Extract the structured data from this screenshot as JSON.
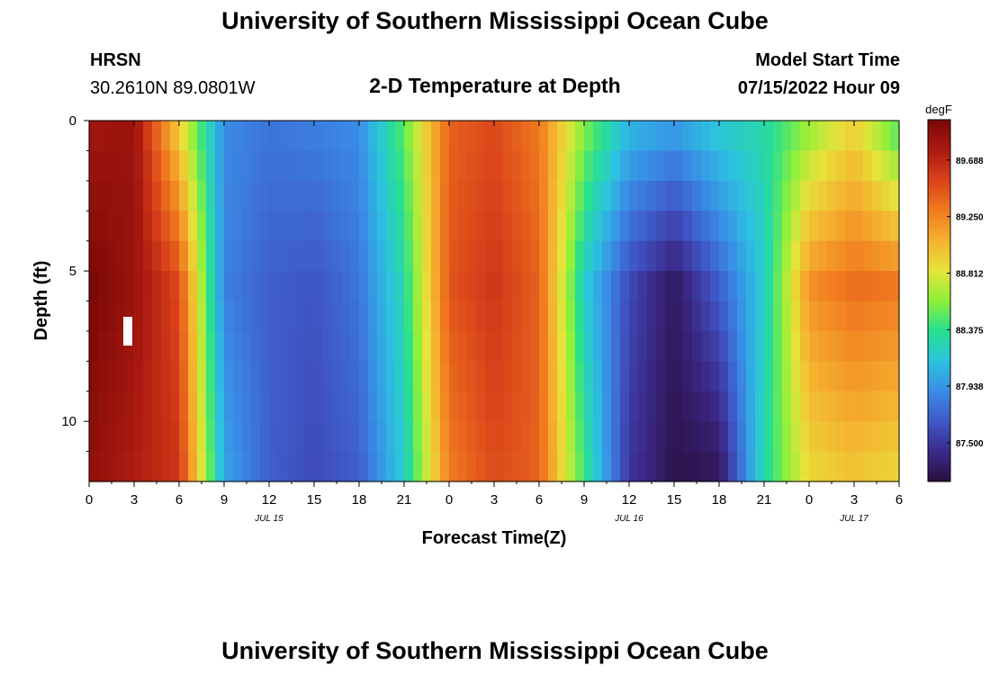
{
  "header": {
    "title": "University of Southern Mississippi Ocean Cube",
    "station": "HRSN",
    "coordinates": "30.2610N  89.0801W",
    "plot_title": "2-D Temperature at Depth",
    "model_start_label": "Model Start Time",
    "model_start_value": "07/15/2022 Hour 09"
  },
  "footer": {
    "title": "University of Southern Mississippi Ocean Cube"
  },
  "chart_data": {
    "type": "heatmap",
    "title": "2-D Temperature at Depth",
    "xlabel": "Forecast Time(Z)",
    "ylabel": "Depth (ft)",
    "x_tick_labels": [
      "0",
      "3",
      "6",
      "9",
      "12",
      "15",
      "18",
      "21",
      "0",
      "3",
      "6",
      "9",
      "12",
      "15",
      "18",
      "21",
      "0",
      "3",
      "6"
    ],
    "x_date_labels": [
      {
        "label": "JUL 15",
        "tick_index": 4
      },
      {
        "label": "JUL 16",
        "tick_index": 12
      },
      {
        "label": "JUL 17",
        "tick_index": 17
      }
    ],
    "y_tick_labels": [
      "0",
      "5",
      "10"
    ],
    "ylim": [
      0,
      12
    ],
    "colorbar": {
      "unit": "degF",
      "ticks": [
        "89.688",
        "89.250",
        "88.812",
        "88.375",
        "87.938",
        "87.500"
      ],
      "vmin": 87.2,
      "vmax": 90.0,
      "colors": [
        "#2a0e3d",
        "#3b2a8a",
        "#3f58c8",
        "#3a8de6",
        "#2cc3e0",
        "#27e08f",
        "#8ef03a",
        "#e6e33a",
        "#f5b12f",
        "#f07a1f",
        "#d9421a",
        "#aa1a10",
        "#7a0806"
      ]
    },
    "x_hours": [
      0,
      3,
      6,
      9,
      12,
      15,
      18,
      21,
      24,
      27,
      30,
      33,
      36,
      39,
      42,
      45,
      48,
      51,
      54
    ],
    "depth_levels_ft": [
      0,
      5.5,
      11.5
    ],
    "temperature_degF": [
      [
        89.8,
        89.85,
        88.9,
        87.9,
        87.8,
        87.85,
        87.9,
        88.5,
        89.4,
        89.5,
        89.3,
        88.6,
        88.1,
        88.0,
        88.2,
        88.3,
        88.6,
        88.9,
        88.4
      ],
      [
        90.0,
        89.85,
        89.5,
        87.85,
        87.7,
        87.65,
        87.8,
        88.3,
        89.45,
        89.6,
        89.4,
        88.2,
        87.6,
        87.3,
        87.7,
        88.2,
        89.2,
        89.35,
        89.3
      ],
      [
        89.9,
        89.75,
        89.6,
        88.0,
        87.7,
        87.6,
        87.7,
        88.2,
        89.3,
        89.5,
        89.4,
        88.4,
        87.5,
        87.25,
        87.3,
        88.3,
        88.9,
        89.0,
        88.9
      ]
    ]
  }
}
